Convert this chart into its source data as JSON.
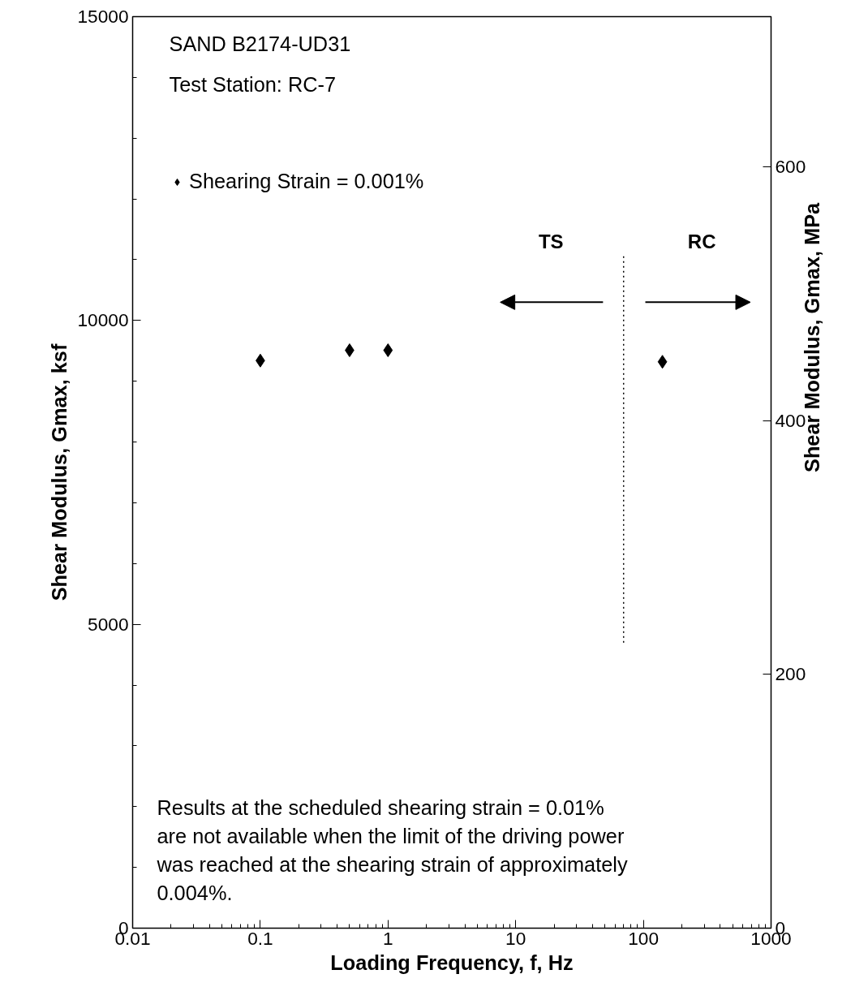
{
  "chart_data": {
    "type": "scatter",
    "xlabel": "Loading Frequency, f, Hz",
    "ylabel": "Shear Modulus, Gmax, ksf",
    "y2label": "Shear Modulus, Gmax, MPa",
    "log": "x",
    "grid": false,
    "legend": "top left",
    "xlim": [
      0.01,
      1000
    ],
    "xticks": [
      0.01,
      0.1,
      1,
      10,
      100,
      1000
    ],
    "ylim": [
      0,
      15000
    ],
    "yticks": [
      0,
      {
        "value": 1000,
        "label": null
      },
      {
        "value": 2000,
        "label": null
      },
      {
        "value": 3000,
        "label": null
      },
      {
        "value": 4000,
        "label": null
      },
      5000,
      {
        "value": 6000,
        "label": null
      },
      {
        "value": 7000,
        "label": null
      },
      {
        "value": 8000,
        "label": null
      },
      {
        "value": 9000,
        "label": null
      },
      10000,
      {
        "value": 11000,
        "label": null
      },
      {
        "value": 12000,
        "label": null
      },
      {
        "value": 13000,
        "label": null
      },
      {
        "value": 14000,
        "label": null
      },
      15000
    ],
    "y2lim": [
      0,
      718.2
    ],
    "y2ticks": [
      0,
      200,
      400,
      600
    ],
    "series": [
      {
        "name": "Shearing Strain = 0.001%",
        "marker": "diamond",
        "color": "#000000",
        "x": [
          0.1,
          0.5,
          1,
          141
        ],
        "values": [
          9340,
          9510,
          9510,
          9320
        ]
      },
      {
        "type": "line",
        "marker": "none",
        "line_style": "dotted",
        "color": "#000000",
        "x": [
          70,
          70
        ],
        "values": [
          4700,
          11100
        ]
      }
    ],
    "annotations": [
      "SAND B2174-UD31",
      "Test Station: RC-7",
      "TS",
      "RC",
      "Results at the scheduled shearing strain = 0.01%\nare not available when the limit of the driving power\nwas reached at the shearing strain of approximately\n0.004%."
    ]
  }
}
